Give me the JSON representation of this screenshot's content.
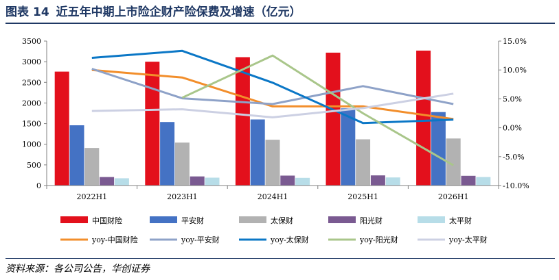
{
  "header": {
    "figure_label": "图表",
    "figure_number": "14",
    "title": "近五年中期上市险企财产险保费及增速（亿元）"
  },
  "footer": {
    "source": "资料来源：各公司公告，华创证券"
  },
  "colors": {
    "title": "#1f3864",
    "rule": "#1f3864"
  },
  "chart_data": {
    "type": "bar",
    "title": "",
    "xlabel": "",
    "ylabel": "",
    "categories": [
      "2022H1",
      "2023H1",
      "2024H1",
      "2025H1",
      "2026H1"
    ],
    "ylim": [
      0,
      3500
    ],
    "y_ticks": [
      0,
      500,
      1000,
      1500,
      2000,
      2500,
      3000,
      3500
    ],
    "y2lim": [
      -10,
      15
    ],
    "y2_ticks": [
      -10,
      -5,
      0,
      5,
      10,
      15
    ],
    "y2_tick_labels": [
      "-10.0%",
      "-5.0%",
      "0.0%",
      "5.0%",
      "10.0%",
      "15.0%"
    ],
    "legend_position": "bottom",
    "grid": false,
    "series": [
      {
        "name": "中国财险",
        "type": "bar",
        "axis": "left",
        "color": "#e3101c",
        "values": [
          2760,
          3000,
          3110,
          3220,
          3270
        ]
      },
      {
        "name": "平安财",
        "type": "bar",
        "axis": "left",
        "color": "#4472c4",
        "values": [
          1460,
          1540,
          1600,
          1870,
          1780
        ]
      },
      {
        "name": "太保财",
        "type": "bar",
        "axis": "left",
        "color": "#b2b2b2",
        "values": [
          910,
          1040,
          1110,
          1120,
          1140
        ]
      },
      {
        "name": "阳光财",
        "type": "bar",
        "axis": "left",
        "color": "#7a5a91",
        "values": [
          205,
          220,
          240,
          245,
          235
        ]
      },
      {
        "name": "太平财",
        "type": "bar",
        "axis": "left",
        "color": "#b7dde8",
        "values": [
          175,
          190,
          185,
          195,
          205
        ]
      },
      {
        "name": "yoy-中国财险",
        "type": "line",
        "axis": "right",
        "color": "#f28e2b",
        "values": [
          10.0,
          8.7,
          3.7,
          3.7,
          1.5
        ]
      },
      {
        "name": "yoy-平安财",
        "type": "line",
        "axis": "right",
        "color": "#8ea2c8",
        "values": [
          10.2,
          5.1,
          4.1,
          7.2,
          4.1
        ]
      },
      {
        "name": "yoy-太保财",
        "type": "line",
        "axis": "right",
        "color": "#0b77c6",
        "values": [
          12.1,
          13.3,
          7.8,
          0.8,
          1.4
        ]
      },
      {
        "name": "yoy-阳光财",
        "type": "line",
        "axis": "right",
        "color": "#a9c68a",
        "values": [
          null,
          5.2,
          12.5,
          2.5,
          -6.5
        ]
      },
      {
        "name": "yoy-太平财",
        "type": "line",
        "axis": "right",
        "color": "#ccd0e3",
        "values": [
          2.9,
          3.2,
          1.8,
          3.4,
          5.9
        ]
      }
    ]
  }
}
